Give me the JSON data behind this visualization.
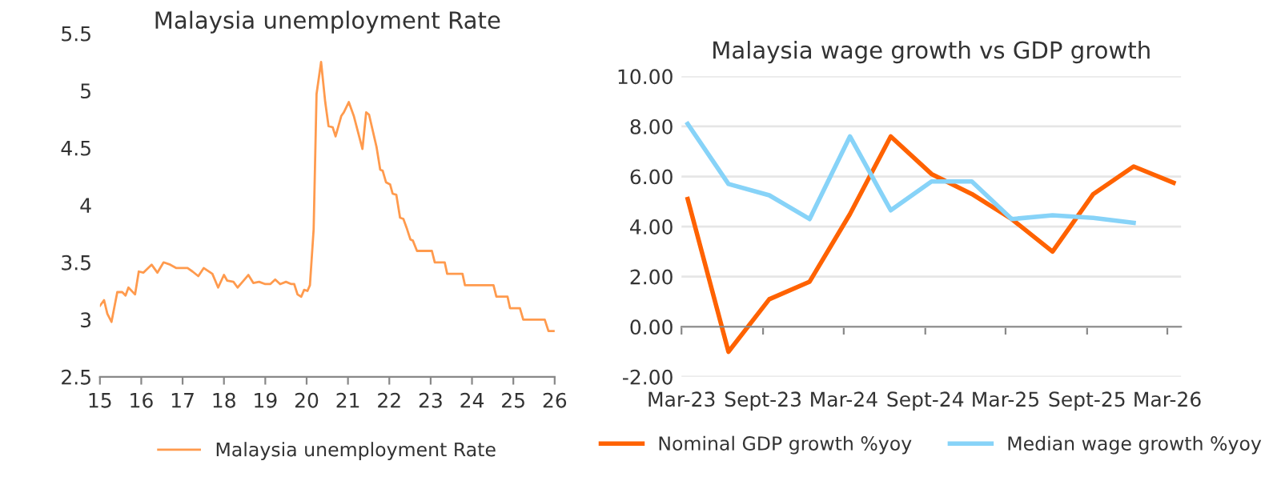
{
  "chart_data": [
    {
      "type": "line",
      "title": "Malaysia unemployment Rate",
      "xlim": [
        15,
        26
      ],
      "xticks": [
        15,
        16,
        17,
        18,
        19,
        20,
        21,
        22,
        23,
        24,
        25,
        26
      ],
      "ylim": [
        2.5,
        5.5
      ],
      "yticks": [
        2.5,
        3,
        3.5,
        4,
        4.5,
        5,
        5.5
      ],
      "grid": false,
      "legend": "bottom",
      "series": [
        {
          "name": "Malaysia unemployment Rate",
          "color": "#ff9a4d",
          "x": [
            15.0,
            15.1,
            15.18,
            15.28,
            15.42,
            15.54,
            15.62,
            15.69,
            15.85,
            15.94,
            16.05,
            16.25,
            16.39,
            16.54,
            16.7,
            16.85,
            17.0,
            17.12,
            17.24,
            17.38,
            17.51,
            17.72,
            17.86,
            18.0,
            18.08,
            18.23,
            18.33,
            18.45,
            18.59,
            18.71,
            18.85,
            19.0,
            19.12,
            19.24,
            19.36,
            19.5,
            19.63,
            19.7,
            19.78,
            19.87,
            19.94,
            20.02,
            20.08,
            20.17,
            20.24,
            20.35,
            20.45,
            20.53,
            20.63,
            20.7,
            20.84,
            20.9,
            21.02,
            21.14,
            21.35,
            21.44,
            21.51,
            21.69,
            21.78,
            21.84,
            21.92,
            22.02,
            22.08,
            22.17,
            22.26,
            22.34,
            22.43,
            22.51,
            22.57,
            22.67,
            23.03,
            23.1,
            23.34,
            23.4,
            23.77,
            23.83,
            24.52,
            24.59,
            24.86,
            24.92,
            25.16,
            25.24,
            25.76,
            25.85,
            26.0
          ],
          "values": [
            3.12,
            3.17,
            3.05,
            2.98,
            3.24,
            3.24,
            3.21,
            3.28,
            3.22,
            3.42,
            3.41,
            3.48,
            3.41,
            3.5,
            3.48,
            3.45,
            3.45,
            3.45,
            3.42,
            3.38,
            3.45,
            3.4,
            3.28,
            3.39,
            3.34,
            3.33,
            3.28,
            3.33,
            3.39,
            3.32,
            3.33,
            3.31,
            3.31,
            3.35,
            3.31,
            3.33,
            3.31,
            3.31,
            3.22,
            3.2,
            3.26,
            3.25,
            3.3,
            3.79,
            4.97,
            5.25,
            4.9,
            4.69,
            4.68,
            4.6,
            4.78,
            4.81,
            4.9,
            4.78,
            4.49,
            4.81,
            4.79,
            4.51,
            4.31,
            4.3,
            4.2,
            4.18,
            4.1,
            4.09,
            3.89,
            3.88,
            3.79,
            3.7,
            3.69,
            3.6,
            3.6,
            3.5,
            3.5,
            3.4,
            3.4,
            3.3,
            3.3,
            3.2,
            3.2,
            3.1,
            3.1,
            3.0,
            3.0,
            2.9,
            2.9
          ]
        }
      ]
    },
    {
      "type": "line",
      "title": "Malaysia wage growth vs GDP growth",
      "x": [
        "2023-03-15",
        "2023-06-15",
        "2023-09-15",
        "2023-12-15",
        "2024-03-15",
        "2024-06-15",
        "2024-09-15",
        "2024-12-15",
        "2025-03-15",
        "2025-06-15",
        "2025-09-15",
        "2025-12-15",
        "2026-03-15"
      ],
      "xlim": [
        "2023-03",
        "2026-04"
      ],
      "xticks": [
        {
          "value": "2023-03",
          "label": "Mar-23"
        },
        {
          "value": "2023-09",
          "label": "Sept-23"
        },
        {
          "value": "2024-03",
          "label": "Mar-24"
        },
        {
          "value": "2024-09",
          "label": "Sept-24"
        },
        {
          "value": "2025-03",
          "label": "Mar-25"
        },
        {
          "value": "2025-09",
          "label": "Sept-25"
        },
        {
          "value": "2026-03",
          "label": "Mar-26"
        }
      ],
      "ylim": [
        -2,
        10
      ],
      "yticks": [
        {
          "value": -2,
          "label": "-2.00"
        },
        {
          "value": 0,
          "label": "0.00"
        },
        {
          "value": 2,
          "label": "2.00"
        },
        {
          "value": 4,
          "label": "4.00"
        },
        {
          "value": 6,
          "label": "6.00"
        },
        {
          "value": 8,
          "label": "8.00"
        },
        {
          "value": 10,
          "label": "10.00"
        }
      ],
      "grid": "y",
      "legend": "bottom",
      "series": [
        {
          "name": "Nominal GDP growth %yoy",
          "color": "#ff6200",
          "values": [
            5.1,
            -1.0,
            1.1,
            1.8,
            4.5,
            7.6,
            6.1,
            5.3,
            4.3,
            3.0,
            5.3,
            6.4,
            5.75
          ]
        },
        {
          "name": "Median wage growth %yoy",
          "color": "#87d3f8",
          "values": [
            8.1,
            5.7,
            5.25,
            4.3,
            7.6,
            4.65,
            5.8,
            5.8,
            4.3,
            4.45,
            4.35,
            4.15,
            null
          ]
        }
      ]
    }
  ]
}
